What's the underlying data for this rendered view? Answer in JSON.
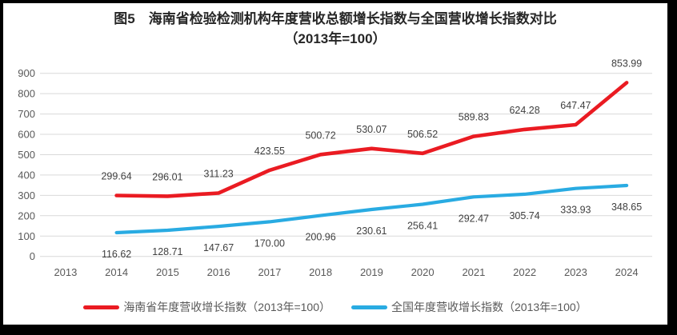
{
  "title": {
    "line1": "图5　海南省检验检测机构年度营收总额增长指数与全国营收增长指数对比",
    "line2": "（2013年=100）"
  },
  "colors": {
    "hainan_line": "#EA1B22",
    "national_line": "#29ABE2",
    "gridline": "#D9D9D9",
    "tick_label": "#595959",
    "data_label": "#3F3F3F",
    "frame": "#000000",
    "background": "#FFFFFF"
  },
  "chart_data": {
    "type": "line",
    "title": "图5　海南省检验检测机构年度营收总额增长指数与全国营收增长指数对比（2013年=100）",
    "categories": [
      2013,
      2014,
      2015,
      2016,
      2017,
      2018,
      2019,
      2020,
      2021,
      2022,
      2023,
      2024
    ],
    "series": [
      {
        "name": "海南省年度营收增长指数（2013年=100）",
        "color": "#EA1B22",
        "start_year": 2014,
        "values": [
          299.64,
          296.01,
          311.23,
          423.55,
          500.72,
          530.07,
          506.52,
          589.83,
          624.28,
          647.47,
          853.99
        ],
        "label_position": "above"
      },
      {
        "name": "全国年度营收增长指数（2013年=100）",
        "color": "#29ABE2",
        "start_year": 2014,
        "values": [
          116.62,
          128.71,
          147.67,
          170.0,
          200.96,
          230.61,
          256.41,
          292.47,
          305.74,
          333.93,
          348.65
        ],
        "label_position": "below"
      }
    ],
    "ylim": [
      0,
      900
    ],
    "y_ticks": [
      0,
      100,
      200,
      300,
      400,
      500,
      600,
      700,
      800,
      900
    ],
    "grid": true,
    "legend_position": "bottom",
    "xlabel": "",
    "ylabel": ""
  }
}
